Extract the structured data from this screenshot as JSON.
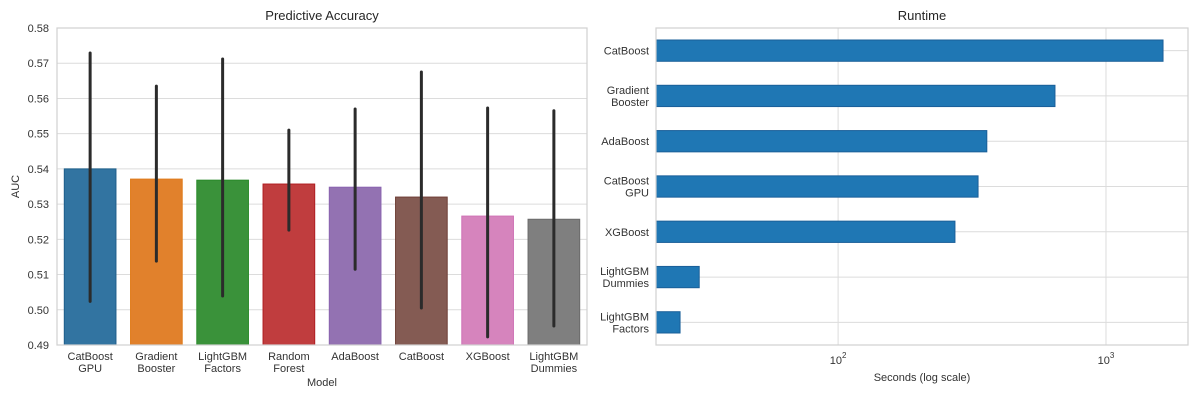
{
  "chart_data": [
    {
      "type": "bar",
      "title": "Predictive Accuracy",
      "xlabel": "Model",
      "ylabel": "AUC",
      "ylim": [
        0.49,
        0.58
      ],
      "yticks": [
        "0.49",
        "0.50",
        "0.51",
        "0.52",
        "0.53",
        "0.54",
        "0.55",
        "0.56",
        "0.57",
        "0.58"
      ],
      "ytick_values": [
        0.49,
        0.5,
        0.51,
        0.52,
        0.53,
        0.54,
        0.55,
        0.56,
        0.57,
        0.58
      ],
      "grid": true,
      "categories": [
        [
          "CatBoost",
          "GPU"
        ],
        [
          "Gradient",
          "Booster"
        ],
        [
          "LightGBM",
          "Factors"
        ],
        [
          "Random",
          "Forest"
        ],
        [
          "AdaBoost"
        ],
        [
          "CatBoost"
        ],
        [
          "XGBoost"
        ],
        [
          "LightGBM",
          "Dummies"
        ]
      ],
      "values": [
        0.54,
        0.5371,
        0.5368,
        0.5357,
        0.5348,
        0.532,
        0.5266,
        0.5257
      ],
      "error_low": [
        0.5024,
        0.5138,
        0.5039,
        0.5226,
        0.5115,
        0.5005,
        0.4923,
        0.4954
      ],
      "error_high": [
        0.5729,
        0.5635,
        0.5712,
        0.551,
        0.557,
        0.5675,
        0.5573,
        0.5565
      ],
      "colors": [
        "#3274a1",
        "#e1812c",
        "#3a923a",
        "#c03d3e",
        "#9372b2",
        "#845b53",
        "#d684bd",
        "#7f7f7f"
      ],
      "edge_colors": [
        "#1f5f8b",
        "#e07b1a",
        "#2a8a2a",
        "#b01e22",
        "#8a63b0",
        "#6e3f36",
        "#cf72b6",
        "#6a6a6a"
      ],
      "error_color": "#2b2b2b"
    },
    {
      "type": "bar",
      "orientation": "horizontal",
      "title": "Runtime",
      "xlabel": "Seconds (log scale)",
      "ylabel": "",
      "xscale": "log",
      "xlim": [
        20.9,
        2024
      ],
      "xticks": [
        {
          "base": "10",
          "exp": "2",
          "value": 100
        },
        {
          "base": "10",
          "exp": "3",
          "value": 1000
        }
      ],
      "grid": true,
      "categories": [
        [
          "CatBoost"
        ],
        [
          "Gradient",
          "Booster"
        ],
        [
          "AdaBoost"
        ],
        [
          "CatBoost",
          "GPU"
        ],
        [
          "XGBoost"
        ],
        [
          "LightGBM",
          "Dummies"
        ],
        [
          "LightGBM",
          "Factors"
        ]
      ],
      "values": [
        1633,
        645,
        359,
        333,
        273,
        30.3,
        25.7
      ],
      "color": "#1f77b4",
      "edge_color": "#1a5f99"
    }
  ]
}
